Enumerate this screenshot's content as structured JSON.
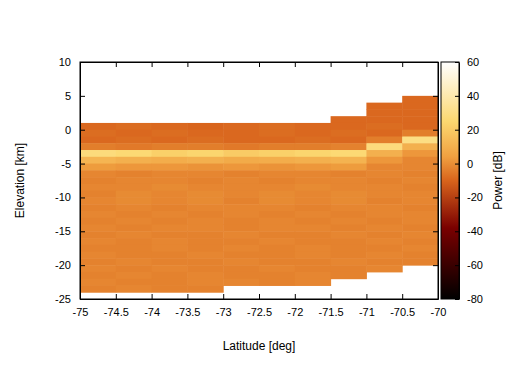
{
  "chart_data": {
    "type": "heatmap",
    "x_label": "Latitude [deg]",
    "y_label": "Elevation [km]",
    "xlim": [
      -75,
      -70
    ],
    "xticks": [
      -75,
      -74.5,
      -74,
      -73.5,
      -73,
      -72.5,
      -72,
      -71.5,
      -71,
      -70.5,
      -70
    ],
    "ylim": [
      -25,
      10
    ],
    "yticks": [
      -25,
      -20,
      -15,
      -10,
      -5,
      0,
      5,
      10
    ],
    "x": [
      -74.75,
      -74.25,
      -73.75,
      -73.25,
      -72.75,
      -72.25,
      -71.75,
      -71.25,
      -70.75,
      -70.25
    ],
    "y": [
      9.5,
      8.5,
      7.5,
      6.5,
      5.5,
      4.5,
      3.5,
      2.5,
      1.5,
      0.5,
      -0.5,
      -1.5,
      -2.5,
      -3.5,
      -4.5,
      -5.5,
      -6.5,
      -7.5,
      -8.5,
      -9.5,
      -10.5,
      -11.5,
      -12.5,
      -13.5,
      -14.5,
      -15.5,
      -16.5,
      -17.5,
      -18.5,
      -19.5,
      -20.5,
      -21.5,
      -22.5,
      -23.5,
      -24.5
    ],
    "values": [
      [
        null,
        null,
        null,
        null,
        null,
        null,
        null,
        null,
        null,
        null
      ],
      [
        null,
        null,
        null,
        null,
        null,
        null,
        null,
        null,
        null,
        null
      ],
      [
        null,
        null,
        null,
        null,
        null,
        null,
        null,
        null,
        null,
        null
      ],
      [
        null,
        null,
        null,
        null,
        null,
        null,
        null,
        null,
        null,
        null
      ],
      [
        null,
        null,
        null,
        null,
        null,
        null,
        null,
        null,
        null,
        null
      ],
      [
        null,
        null,
        null,
        null,
        null,
        null,
        null,
        null,
        null,
        -9
      ],
      [
        null,
        null,
        null,
        null,
        null,
        null,
        null,
        null,
        -9,
        -9
      ],
      [
        null,
        null,
        null,
        null,
        null,
        null,
        null,
        null,
        -9,
        -9
      ],
      [
        null,
        null,
        null,
        null,
        null,
        null,
        null,
        -9,
        -9,
        -9
      ],
      [
        -9,
        -8,
        -9,
        -10,
        -9,
        -8,
        -9,
        -9,
        -8,
        -9
      ],
      [
        -8,
        -9,
        -8,
        -9,
        -9,
        -8,
        -9,
        -8,
        -9,
        -4
      ],
      [
        -9,
        -8,
        -9,
        -8,
        -9,
        -9,
        -8,
        -9,
        -4,
        30
      ],
      [
        -4,
        -5,
        -4,
        -4,
        -5,
        -4,
        -4,
        -3,
        28,
        10
      ],
      [
        28,
        26,
        22,
        24,
        20,
        22,
        24,
        26,
        10,
        2
      ],
      [
        12,
        10,
        9,
        10,
        8,
        9,
        10,
        11,
        2,
        -2
      ],
      [
        3,
        2,
        2,
        1,
        2,
        1,
        2,
        3,
        -2,
        -2
      ],
      [
        -2,
        -3,
        -2,
        -2,
        -3,
        -2,
        -2,
        -3,
        -2,
        -3
      ],
      [
        -3,
        -2,
        -2,
        -3,
        -2,
        -3,
        -2,
        -2,
        -3,
        -2
      ],
      [
        -2,
        -2,
        -1,
        -2,
        -2,
        -2,
        -1,
        -2,
        -2,
        -3
      ],
      [
        -3,
        -1,
        -2,
        -1,
        -2,
        -1,
        -2,
        -1,
        -2,
        -2
      ],
      [
        -2,
        -1,
        -2,
        -1,
        -3,
        -1,
        -2,
        -1,
        -3,
        -2
      ],
      [
        -3,
        -2,
        -3,
        -2,
        -2,
        -2,
        -3,
        -2,
        -2,
        -3
      ],
      [
        -2,
        -3,
        -2,
        -3,
        -2,
        -3,
        -2,
        -3,
        -2,
        -2
      ],
      [
        -3,
        -2,
        -3,
        -2,
        -3,
        -2,
        -3,
        -2,
        -3,
        -2
      ],
      [
        -2,
        -3,
        -2,
        -2,
        -3,
        -2,
        -2,
        -3,
        -2,
        -3
      ],
      [
        -3,
        -2,
        -3,
        -3,
        -2,
        -3,
        -3,
        -2,
        -3,
        -2
      ],
      [
        -2,
        -3,
        -2,
        -3,
        -3,
        -2,
        -3,
        -3,
        -2,
        -3
      ],
      [
        -3,
        -3,
        -2,
        -3,
        -2,
        -3,
        -2,
        -3,
        -3,
        -2
      ],
      [
        -2,
        -3,
        -3,
        -2,
        -3,
        -3,
        -2,
        -3,
        -2,
        -3
      ],
      [
        -3,
        -2,
        -3,
        -3,
        -2,
        -3,
        -3,
        -2,
        -3,
        -3
      ],
      [
        -2,
        -3,
        -2,
        -3,
        -3,
        -2,
        -3,
        -3,
        -2,
        null
      ],
      [
        -3,
        -2,
        -3,
        -2,
        -3,
        -3,
        -2,
        -3,
        null,
        null
      ],
      [
        -2,
        -3,
        -3,
        -2,
        -2,
        -3,
        -2,
        null,
        null,
        null
      ],
      [
        -3,
        -2,
        -3,
        -3,
        null,
        null,
        null,
        null,
        null,
        null
      ],
      [
        null,
        null,
        null,
        null,
        null,
        null,
        null,
        null,
        null,
        null
      ]
    ],
    "colorbar": {
      "label": "Power [dB]",
      "range": [
        -80,
        60
      ],
      "ticks": [
        -80,
        -60,
        -40,
        -20,
        0,
        20,
        40,
        60
      ]
    }
  }
}
